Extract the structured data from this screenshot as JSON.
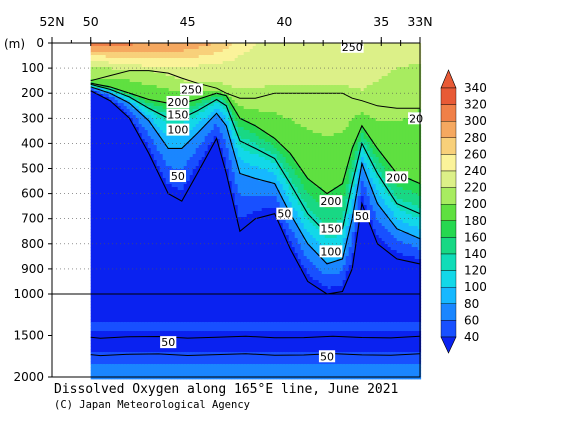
{
  "chart_data": {
    "type": "heatmap",
    "title": "Dissolved Oxygen along 165°E line, June 2021",
    "credit": "(C) Japan Meteorological Agency",
    "x_axis": {
      "reversed": true,
      "range": [
        33,
        52
      ],
      "top_tick_labels": [
        {
          "lat": 52,
          "label": "52N"
        },
        {
          "lat": 50,
          "label": "50"
        },
        {
          "lat": 45,
          "label": "45"
        },
        {
          "lat": 40,
          "label": "40"
        },
        {
          "lat": 35,
          "label": "35"
        },
        {
          "lat": 33,
          "label": "33N"
        }
      ]
    },
    "y_axis": {
      "unit_label": "(m)",
      "reversed": true,
      "upper_segment": {
        "range": [
          0,
          1000
        ],
        "ticks": [
          "0",
          "100",
          "200",
          "300",
          "400",
          "500",
          "600",
          "700",
          "800",
          "900",
          "1000"
        ]
      },
      "lower_segment": {
        "range": [
          1000,
          2000
        ],
        "ticks": [
          "1500",
          "2000"
        ]
      }
    },
    "colorbar": {
      "levels": [
        40,
        60,
        80,
        100,
        120,
        140,
        160,
        180,
        200,
        220,
        240,
        260,
        280,
        300,
        320,
        340
      ],
      "colors": [
        "#0a22f0",
        "#1850ff",
        "#1a86ff",
        "#16b8ff",
        "#12d8e8",
        "#10dcb8",
        "#18d884",
        "#26d850",
        "#5fe040",
        "#a8ec60",
        "#dcf088",
        "#fbf39a",
        "#f8d07a",
        "#f5a860",
        "#f08048",
        "#e85a36"
      ]
    },
    "no_data_latitude_north_of": 50,
    "contour_labels": [
      {
        "text": "250",
        "lat": 36.5,
        "depth": 15
      },
      {
        "text": "250",
        "lat": 44.8,
        "depth": 185
      },
      {
        "text": "200",
        "lat": 45.5,
        "depth": 235
      },
      {
        "text": "150",
        "lat": 45.5,
        "depth": 285
      },
      {
        "text": "100",
        "lat": 45.5,
        "depth": 345
      },
      {
        "text": "50",
        "lat": 45.5,
        "depth": 530
      },
      {
        "text": "50",
        "lat": 40.0,
        "depth": 680
      },
      {
        "text": "200",
        "lat": 37.6,
        "depth": 630
      },
      {
        "text": "150",
        "lat": 37.6,
        "depth": 740
      },
      {
        "text": "100",
        "lat": 37.6,
        "depth": 830
      },
      {
        "text": "50",
        "lat": 36.0,
        "depth": 690
      },
      {
        "text": "200",
        "lat": 34.2,
        "depth": 535
      },
      {
        "text": "20",
        "lat": 33.2,
        "depth": 300
      },
      {
        "text": "50",
        "lat": 46.0,
        "depth": 1580
      },
      {
        "text": "50",
        "lat": 37.8,
        "depth": 1750
      }
    ],
    "sections": [
      {
        "lat": 50.0,
        "o2_100": 230,
        "surf": 330,
        "thermo": 150,
        "b200": 160,
        "b150": 165,
        "b100": 175,
        "b50": 190
      },
      {
        "lat": 49.0,
        "o2_100": 240,
        "surf": 330,
        "thermo": 130,
        "b200": 175,
        "b150": 185,
        "b100": 200,
        "b50": 230
      },
      {
        "lat": 48.0,
        "o2_100": 250,
        "surf": 325,
        "thermo": 110,
        "b200": 200,
        "b150": 215,
        "b100": 240,
        "b50": 300
      },
      {
        "lat": 47.0,
        "o2_100": 255,
        "surf": 320,
        "thermo": 110,
        "b200": 225,
        "b150": 260,
        "b100": 310,
        "b50": 440
      },
      {
        "lat": 46.0,
        "o2_100": 258,
        "surf": 320,
        "thermo": 120,
        "b200": 240,
        "b150": 300,
        "b100": 420,
        "b50": 600
      },
      {
        "lat": 45.3,
        "o2_100": 258,
        "surf": 320,
        "thermo": 140,
        "b200": 240,
        "b150": 300,
        "b100": 420,
        "b50": 630
      },
      {
        "lat": 44.5,
        "o2_100": 255,
        "surf": 310,
        "thermo": 160,
        "b200": 225,
        "b150": 270,
        "b100": 360,
        "b50": 520
      },
      {
        "lat": 43.5,
        "o2_100": 250,
        "surf": 300,
        "thermo": 180,
        "b200": 200,
        "b150": 225,
        "b100": 280,
        "b50": 380
      },
      {
        "lat": 43.0,
        "o2_100": 250,
        "surf": 290,
        "thermo": 200,
        "b200": 210,
        "b150": 250,
        "b100": 330,
        "b50": 520
      },
      {
        "lat": 42.3,
        "o2_100": 250,
        "surf": 270,
        "thermo": 220,
        "b200": 300,
        "b150": 390,
        "b100": 520,
        "b50": 750
      },
      {
        "lat": 41.5,
        "o2_100": 250,
        "surf": 260,
        "thermo": 220,
        "b200": 330,
        "b150": 420,
        "b100": 540,
        "b50": 700
      },
      {
        "lat": 40.5,
        "o2_100": 250,
        "surf": 260,
        "thermo": 200,
        "b200": 380,
        "b150": 460,
        "b100": 560,
        "b50": 680
      },
      {
        "lat": 39.7,
        "o2_100": 250,
        "surf": 260,
        "thermo": 200,
        "b200": 440,
        "b150": 560,
        "b100": 680,
        "b50": 820
      },
      {
        "lat": 38.8,
        "o2_100": 250,
        "surf": 260,
        "thermo": 200,
        "b200": 540,
        "b150": 680,
        "b100": 800,
        "b50": 950
      },
      {
        "lat": 37.8,
        "o2_100": 250,
        "surf": 260,
        "thermo": 200,
        "b200": 600,
        "b150": 760,
        "b100": 880,
        "b50": 1000
      },
      {
        "lat": 37.0,
        "o2_100": 250,
        "surf": 260,
        "thermo": 200,
        "b200": 560,
        "b150": 740,
        "b100": 860,
        "b50": 990
      },
      {
        "lat": 36.5,
        "o2_100": 250,
        "surf": 260,
        "thermo": 220,
        "b200": 420,
        "b150": 560,
        "b100": 700,
        "b50": 900
      },
      {
        "lat": 36.0,
        "o2_100": 250,
        "surf": 260,
        "thermo": 230,
        "b200": 330,
        "b150": 400,
        "b100": 480,
        "b50": 640
      },
      {
        "lat": 35.2,
        "o2_100": 245,
        "surf": 260,
        "thermo": 250,
        "b200": 420,
        "b150": 520,
        "b100": 640,
        "b50": 800
      },
      {
        "lat": 34.2,
        "o2_100": 240,
        "surf": 260,
        "thermo": 260,
        "b200": 520,
        "b150": 640,
        "b100": 740,
        "b50": 860
      },
      {
        "lat": 33.0,
        "o2_100": 235,
        "surf": 260,
        "thermo": 260,
        "b200": 560,
        "b150": 680,
        "b100": 780,
        "b50": 880
      }
    ],
    "deep_bands": [
      {
        "top": 1350,
        "bottom": 1450,
        "value": 60
      },
      {
        "top": 1450,
        "bottom": 1600,
        "value": 45
      },
      {
        "top": 1600,
        "bottom": 1700,
        "value": 55
      },
      {
        "top": 1700,
        "bottom": 1850,
        "value": 72
      },
      {
        "top": 1850,
        "bottom": 2000,
        "value": 88
      }
    ]
  }
}
